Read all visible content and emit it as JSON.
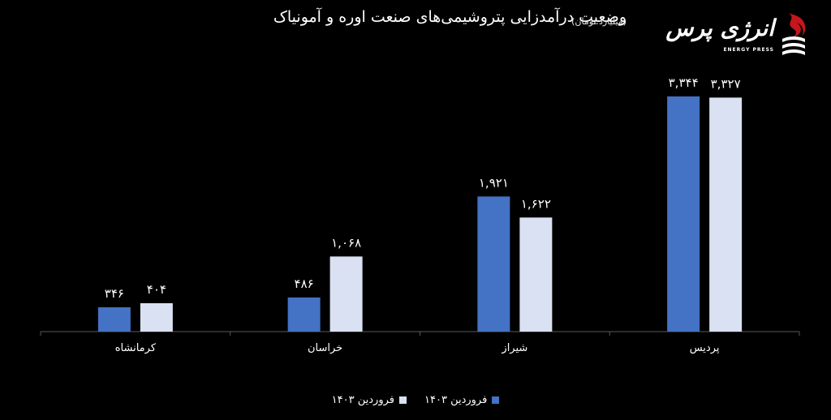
{
  "header": {
    "title": "وضعیت درآمدزایی پتروشیمی‌های صنعت اوره و آمونیاک",
    "subtitle": "(میلیارد تومان)"
  },
  "logo": {
    "name": "انرژی پرس",
    "tagline": "ENERGY PRESS"
  },
  "colors": {
    "series_1": "#4472C4",
    "series_2": "#D9E1F2",
    "axis": "#595959",
    "background": "#000000"
  },
  "chart_data": {
    "type": "bar",
    "title": "وضعیت درآمدزایی پتروشیمی‌های صنعت اوره و آمونیاک",
    "subtitle": "(میلیارد تومان)",
    "categories": [
      "کرمانشاه",
      "خراسان",
      "شیراز",
      "پردیس"
    ],
    "series": [
      {
        "name": "فروردین ۱۴۰۳",
        "values": [
          346,
          486,
          1921,
          3344
        ],
        "labels": [
          "۳۴۶",
          "۴۸۶",
          "۱,۹۲۱",
          "۳,۳۴۴"
        ]
      },
      {
        "name": "فروردین ۱۴۰۳",
        "values": [
          404,
          1068,
          1622,
          3327
        ],
        "labels": [
          "۴۰۴",
          "۱,۰۶۸",
          "۱,۶۲۲",
          "۳,۳۲۷"
        ]
      }
    ],
    "ylim": [
      0,
      3700
    ],
    "grid": false,
    "legend_position": "bottom"
  }
}
